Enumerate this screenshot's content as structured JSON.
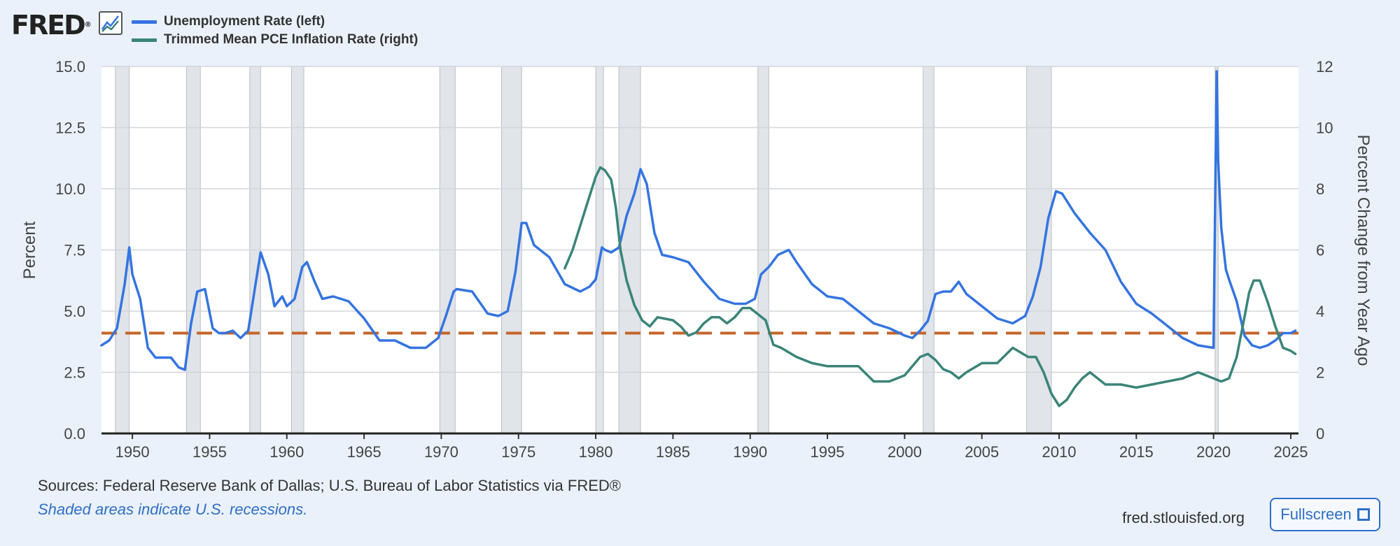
{
  "brand": {
    "logo_text": "FRED",
    "logo_mark": "®",
    "graph_icon": "line-chart-icon"
  },
  "legend": [
    {
      "label": "Unemployment Rate (left)",
      "color": "#3574e0"
    },
    {
      "label": "Trimmed Mean PCE Inflation Rate (right)",
      "color": "#3a8479"
    }
  ],
  "footer": {
    "sources": "Sources: Federal Reserve Bank of Dallas; U.S. Bureau of Labor Statistics via FRED®",
    "shaded_note": "Shaded areas indicate U.S. recessions.",
    "site": "fred.stlouisfed.org",
    "fullscreen_label": "Fullscreen"
  },
  "chart_data": {
    "type": "line",
    "xlim": [
      1948,
      2025.5
    ],
    "x_ticks": [
      1950,
      1955,
      1960,
      1965,
      1970,
      1975,
      1980,
      1985,
      1990,
      1995,
      2000,
      2005,
      2010,
      2015,
      2020,
      2025
    ],
    "y_left": {
      "label": "Percent",
      "ylim": [
        0,
        15
      ],
      "ticks": [
        "0.0",
        "2.5",
        "5.0",
        "7.5",
        "10.0",
        "12.5",
        "15.0"
      ]
    },
    "y_right": {
      "label": "Percent Change from Year Ago",
      "ylim": [
        0,
        12
      ],
      "ticks": [
        "0",
        "2",
        "4",
        "6",
        "8",
        "10",
        "12"
      ]
    },
    "grid": true,
    "recessions": [
      [
        1948.9,
        1949.8
      ],
      [
        1953.5,
        1954.4
      ],
      [
        1957.6,
        1958.3
      ],
      [
        1960.3,
        1961.1
      ],
      [
        1969.9,
        1970.9
      ],
      [
        1973.9,
        1975.2
      ],
      [
        1980.0,
        1980.5
      ],
      [
        1981.5,
        1982.9
      ],
      [
        1990.5,
        1991.2
      ],
      [
        2001.2,
        2001.9
      ],
      [
        2007.9,
        2009.5
      ],
      [
        2020.1,
        2020.3
      ]
    ],
    "reference_line": {
      "value": 4.1,
      "axis": "left",
      "color": "#c4662a",
      "style": "dashed"
    },
    "series": [
      {
        "name": "Unemployment Rate (left)",
        "axis": "left",
        "color": "#3574e0",
        "x": [
          1948.0,
          1948.5,
          1949.0,
          1949.5,
          1949.8,
          1950.0,
          1950.5,
          1951.0,
          1951.5,
          1952.0,
          1952.5,
          1953.0,
          1953.4,
          1953.8,
          1954.2,
          1954.7,
          1955.2,
          1955.6,
          1956.0,
          1956.5,
          1957.0,
          1957.5,
          1958.0,
          1958.3,
          1958.8,
          1959.2,
          1959.7,
          1960.0,
          1960.5,
          1961.0,
          1961.3,
          1961.8,
          1962.3,
          1963.0,
          1964.0,
          1965.0,
          1966.0,
          1967.0,
          1968.0,
          1969.0,
          1969.8,
          1970.3,
          1970.8,
          1971.0,
          1972.0,
          1973.0,
          1973.7,
          1974.3,
          1974.8,
          1975.2,
          1975.5,
          1976.0,
          1977.0,
          1978.0,
          1979.0,
          1979.6,
          1980.0,
          1980.4,
          1980.6,
          1981.0,
          1981.5,
          1982.0,
          1982.5,
          1982.9,
          1983.3,
          1983.8,
          1984.3,
          1985.0,
          1986.0,
          1987.0,
          1988.0,
          1989.0,
          1989.7,
          1990.3,
          1990.7,
          1991.2,
          1991.8,
          1992.5,
          1993.0,
          1994.0,
          1995.0,
          1996.0,
          1997.0,
          1998.0,
          1999.0,
          2000.0,
          2000.5,
          2001.0,
          2001.5,
          2002.0,
          2002.5,
          2003.0,
          2003.5,
          2004.0,
          2005.0,
          2006.0,
          2007.0,
          2007.8,
          2008.3,
          2008.8,
          2009.3,
          2009.8,
          2010.2,
          2011.0,
          2012.0,
          2013.0,
          2014.0,
          2015.0,
          2016.0,
          2017.0,
          2018.0,
          2019.0,
          2020.0,
          2020.2,
          2020.3,
          2020.5,
          2020.8,
          2021.0,
          2021.5,
          2022.0,
          2022.5,
          2023.0,
          2023.5,
          2024.0,
          2024.5,
          2025.0,
          2025.3
        ],
        "y": [
          3.6,
          3.8,
          4.3,
          6.1,
          7.6,
          6.5,
          5.5,
          3.5,
          3.1,
          3.1,
          3.1,
          2.7,
          2.6,
          4.5,
          5.8,
          5.9,
          4.3,
          4.1,
          4.1,
          4.2,
          3.9,
          4.2,
          6.2,
          7.4,
          6.5,
          5.2,
          5.6,
          5.2,
          5.5,
          6.8,
          7.0,
          6.2,
          5.5,
          5.6,
          5.4,
          4.7,
          3.8,
          3.8,
          3.5,
          3.5,
          3.9,
          4.8,
          5.8,
          5.9,
          5.8,
          4.9,
          4.8,
          5.0,
          6.6,
          8.6,
          8.6,
          7.7,
          7.2,
          6.1,
          5.8,
          6.0,
          6.3,
          7.6,
          7.5,
          7.4,
          7.6,
          8.9,
          9.8,
          10.8,
          10.2,
          8.2,
          7.3,
          7.2,
          7.0,
          6.2,
          5.5,
          5.3,
          5.3,
          5.5,
          6.5,
          6.8,
          7.3,
          7.5,
          7.0,
          6.1,
          5.6,
          5.5,
          5.0,
          4.5,
          4.3,
          4.0,
          3.9,
          4.2,
          4.6,
          5.7,
          5.8,
          5.8,
          6.2,
          5.7,
          5.2,
          4.7,
          4.5,
          4.8,
          5.6,
          6.8,
          8.8,
          9.9,
          9.8,
          9.0,
          8.2,
          7.5,
          6.2,
          5.3,
          4.9,
          4.4,
          3.9,
          3.6,
          3.5,
          14.8,
          11.1,
          8.4,
          6.7,
          6.3,
          5.4,
          4.0,
          3.6,
          3.5,
          3.6,
          3.8,
          4.1,
          4.1,
          4.2
        ]
      },
      {
        "name": "Trimmed Mean PCE Inflation Rate (right)",
        "axis": "right",
        "color": "#3a8479",
        "x": [
          1978.0,
          1978.5,
          1979.0,
          1979.5,
          1980.0,
          1980.3,
          1980.6,
          1981.0,
          1981.3,
          1981.6,
          1982.0,
          1982.5,
          1983.0,
          1983.5,
          1984.0,
          1985.0,
          1985.5,
          1986.0,
          1986.5,
          1987.0,
          1987.5,
          1988.0,
          1988.5,
          1989.0,
          1989.5,
          1990.0,
          1990.5,
          1991.0,
          1991.5,
          1992.0,
          1993.0,
          1994.0,
          1995.0,
          1996.0,
          1997.0,
          1998.0,
          1999.0,
          2000.0,
          2000.5,
          2001.0,
          2001.5,
          2002.0,
          2002.5,
          2003.0,
          2003.5,
          2004.0,
          2005.0,
          2006.0,
          2007.0,
          2008.0,
          2008.5,
          2009.0,
          2009.5,
          2010.0,
          2010.5,
          2011.0,
          2011.5,
          2012.0,
          2013.0,
          2014.0,
          2015.0,
          2016.0,
          2017.0,
          2018.0,
          2019.0,
          2020.0,
          2020.5,
          2021.0,
          2021.5,
          2022.0,
          2022.3,
          2022.6,
          2023.0,
          2023.5,
          2024.0,
          2024.5,
          2025.0,
          2025.3
        ],
        "y": [
          5.4,
          6.0,
          6.8,
          7.6,
          8.4,
          8.7,
          8.6,
          8.3,
          7.4,
          6.0,
          5.0,
          4.2,
          3.7,
          3.5,
          3.8,
          3.7,
          3.5,
          3.2,
          3.3,
          3.6,
          3.8,
          3.8,
          3.6,
          3.8,
          4.1,
          4.1,
          3.9,
          3.7,
          2.9,
          2.8,
          2.5,
          2.3,
          2.2,
          2.2,
          2.2,
          1.7,
          1.7,
          1.9,
          2.2,
          2.5,
          2.6,
          2.4,
          2.1,
          2.0,
          1.8,
          2.0,
          2.3,
          2.3,
          2.8,
          2.5,
          2.5,
          2.0,
          1.3,
          0.9,
          1.1,
          1.5,
          1.8,
          2.0,
          1.6,
          1.6,
          1.5,
          1.6,
          1.7,
          1.8,
          2.0,
          1.8,
          1.7,
          1.8,
          2.5,
          3.8,
          4.6,
          5.0,
          5.0,
          4.3,
          3.5,
          2.8,
          2.7,
          2.6
        ]
      }
    ]
  }
}
